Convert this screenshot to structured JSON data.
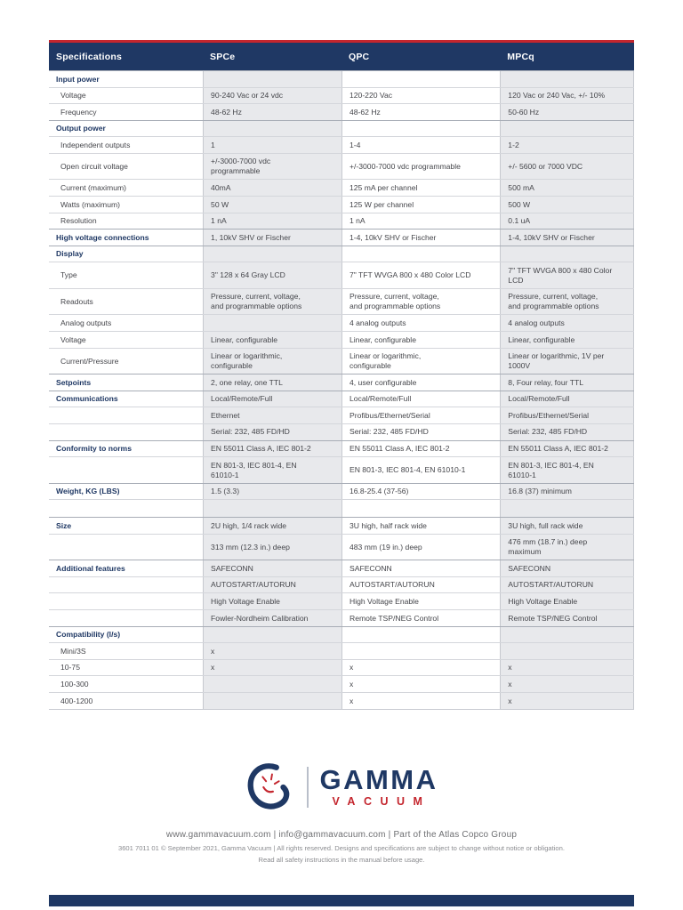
{
  "colors": {
    "navy": "#1f3864",
    "red": "#c4262e",
    "cell_gray": "#e8e9ec"
  },
  "table": {
    "columns": [
      "Specifications",
      "SPCe",
      "QPC",
      "MPCq"
    ],
    "rows": [
      {
        "t": "section",
        "label": "Input power",
        "c": [
          "",
          "",
          ""
        ]
      },
      {
        "t": "item",
        "label": "Voltage",
        "c": [
          "90-240 Vac or 24 vdc",
          "120-220 Vac",
          "120 Vac or 240 Vac, +/- 10%"
        ]
      },
      {
        "t": "item",
        "label": "Frequency",
        "c": [
          "48-62 Hz",
          "48-62 Hz",
          "50-60 Hz"
        ]
      },
      {
        "t": "section",
        "label": "Output power",
        "c": [
          "",
          "",
          ""
        ]
      },
      {
        "t": "item",
        "label": "Independent outputs",
        "c": [
          "1",
          "1-4",
          "1-2"
        ]
      },
      {
        "t": "item",
        "label": "Open circuit voltage",
        "c": [
          "+/-3000-7000 vdc\nprogrammable",
          "+/-3000-7000 vdc programmable",
          "+/- 5600 or 7000 VDC"
        ]
      },
      {
        "t": "item",
        "label": "Current (maximum)",
        "c": [
          "40mA",
          "125 mA per channel",
          "500 mA"
        ]
      },
      {
        "t": "item",
        "label": "Watts (maximum)",
        "c": [
          "50 W",
          "125 W per channel",
          "500 W"
        ]
      },
      {
        "t": "item",
        "label": "Resolution",
        "c": [
          "1 nA",
          "1 nA",
          "0.1 uA"
        ]
      },
      {
        "t": "bold",
        "label": "High voltage connections",
        "c": [
          "1, 10kV SHV or Fischer",
          "1-4, 10kV SHV or Fischer",
          "1-4, 10kV SHV or Fischer"
        ]
      },
      {
        "t": "section",
        "label": "Display",
        "c": [
          "",
          "",
          ""
        ]
      },
      {
        "t": "item",
        "label": "Type",
        "c": [
          "3\" 128 x 64 Gray LCD",
          "7\" TFT WVGA 800 x 480 Color LCD",
          "7\" TFT WVGA 800 x 480 Color\nLCD"
        ]
      },
      {
        "t": "item",
        "label": "Readouts",
        "c": [
          "Pressure, current, voltage,\nand programmable options",
          "Pressure, current, voltage,\nand programmable options",
          "Pressure, current, voltage,\nand programmable options"
        ]
      },
      {
        "t": "item",
        "label": "Analog outputs",
        "c": [
          "",
          "4 analog outputs",
          "4 analog outputs"
        ]
      },
      {
        "t": "item",
        "label": "Voltage",
        "c": [
          "Linear, configurable",
          "Linear, configurable",
          "Linear, configurable"
        ]
      },
      {
        "t": "item",
        "label": "Current/Pressure",
        "c": [
          "Linear or logarithmic,\nconfigurable",
          "Linear or logarithmic,\nconfigurable",
          "Linear or logarithmic, 1V per\n1000V"
        ]
      },
      {
        "t": "bold",
        "label": "Setpoints",
        "c": [
          "2, one relay, one TTL",
          "4, user configurable",
          "8, Four relay, four TTL"
        ]
      },
      {
        "t": "bold",
        "label": "Communications",
        "c": [
          "Local/Remote/Full",
          "Local/Remote/Full",
          "Local/Remote/Full"
        ]
      },
      {
        "t": "cont",
        "label": "",
        "c": [
          "Ethernet",
          "Profibus/Ethernet/Serial",
          "Profibus/Ethernet/Serial"
        ]
      },
      {
        "t": "cont",
        "label": "",
        "c": [
          "Serial: 232, 485 FD/HD",
          "Serial: 232, 485 FD/HD",
          "Serial: 232, 485 FD/HD"
        ]
      },
      {
        "t": "bold",
        "label": "Conformity to norms",
        "c": [
          "EN 55011 Class A, IEC 801-2",
          "EN 55011 Class A, IEC 801-2",
          "EN 55011 Class A, IEC 801-2"
        ]
      },
      {
        "t": "cont",
        "label": "",
        "c": [
          "EN 801-3, IEC 801-4, EN\n61010-1",
          "EN 801-3, IEC 801-4, EN 61010-1",
          "EN 801-3, IEC 801-4, EN\n61010-1"
        ]
      },
      {
        "t": "bold",
        "label": "Weight, KG (LBS)",
        "c": [
          "1.5 (3.3)",
          "16.8-25.4 (37-56)",
          "16.8 (37) minimum"
        ]
      },
      {
        "t": "spacer",
        "label": "",
        "c": [
          "",
          "",
          ""
        ]
      },
      {
        "t": "bold",
        "label": "Size",
        "c": [
          "2U high, 1/4 rack wide",
          "3U high, half rack wide",
          "3U high, full rack wide"
        ]
      },
      {
        "t": "cont",
        "label": "",
        "c": [
          "313 mm (12.3 in.) deep",
          "483 mm (19 in.) deep",
          "476 mm (18.7 in.) deep\nmaximum"
        ]
      },
      {
        "t": "bold",
        "label": "Additional features",
        "c": [
          "SAFECONN",
          "SAFECONN",
          "SAFECONN"
        ]
      },
      {
        "t": "cont",
        "label": "",
        "c": [
          "AUTOSTART/AUTORUN",
          "AUTOSTART/AUTORUN",
          "AUTOSTART/AUTORUN"
        ]
      },
      {
        "t": "cont",
        "label": "",
        "c": [
          "High Voltage Enable",
          "High Voltage Enable",
          "High Voltage Enable"
        ]
      },
      {
        "t": "cont",
        "label": "",
        "c": [
          "Fowler-Nordheim Calibration",
          "Remote TSP/NEG Control",
          "Remote TSP/NEG Control"
        ]
      },
      {
        "t": "section",
        "label": "Compatibility (l/s)",
        "c": [
          "",
          "",
          ""
        ]
      },
      {
        "t": "item",
        "label": "Mini/3S",
        "c": [
          "x",
          "",
          ""
        ]
      },
      {
        "t": "item",
        "label": "10-75",
        "c": [
          "x",
          "x",
          "x"
        ]
      },
      {
        "t": "item",
        "label": "100-300",
        "c": [
          "",
          "x",
          "x"
        ]
      },
      {
        "t": "item",
        "label": "400-1200",
        "c": [
          "",
          "x",
          "x"
        ]
      }
    ]
  },
  "logo": {
    "name": "GAMMA",
    "sub": "VACUUM"
  },
  "footer": {
    "line1": "www.gammavacuum.com | info@gammavacuum.com | Part of the Atlas Copco Group",
    "line2": "3601 7011 01 © September 2021, Gamma Vacuum | All rights reserved. Designs and specifications are subject to change without notice or obligation.",
    "line3": "Read all safety instructions in the manual before usage."
  }
}
